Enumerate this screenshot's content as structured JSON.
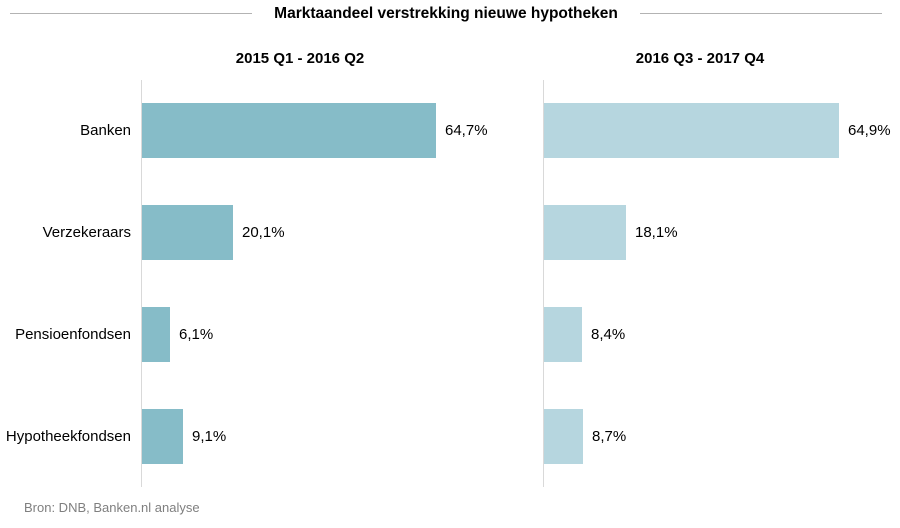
{
  "source": "Bron: DNB, Banken.nl analyse",
  "colors": {
    "left_series_bar": "#86bcc8",
    "right_series_bar": "#b6d6df",
    "axis_line": "#d9d9d9",
    "title_divider": "#b3b3b3",
    "source_text": "#7f7f7f",
    "text": "#000000"
  },
  "chart_data": {
    "type": "bar",
    "orientation": "horizontal",
    "title": "Marktaandeel verstrekking nieuwe hypotheken",
    "categories": [
      "Banken",
      "Verzekeraars",
      "Pensioenfondsen",
      "Hypotheekfondsen"
    ],
    "series": [
      {
        "name": "2015 Q1 - 2016 Q2",
        "values": [
          64.7,
          20.1,
          6.1,
          9.1
        ],
        "labels": [
          "64,7%",
          "20,1%",
          "6,1%",
          "9,1%"
        ],
        "color": "#86bcc8"
      },
      {
        "name": "2016 Q3 - 2017 Q4",
        "values": [
          64.9,
          18.1,
          8.4,
          8.7
        ],
        "labels": [
          "64,9%",
          "18,1%",
          "8,4%",
          "8,7%"
        ],
        "color": "#b6d6df"
      }
    ],
    "value_suffix": "%",
    "xlim": [
      0,
      80
    ],
    "grid": false,
    "legend_position": "panel-subtitles"
  }
}
